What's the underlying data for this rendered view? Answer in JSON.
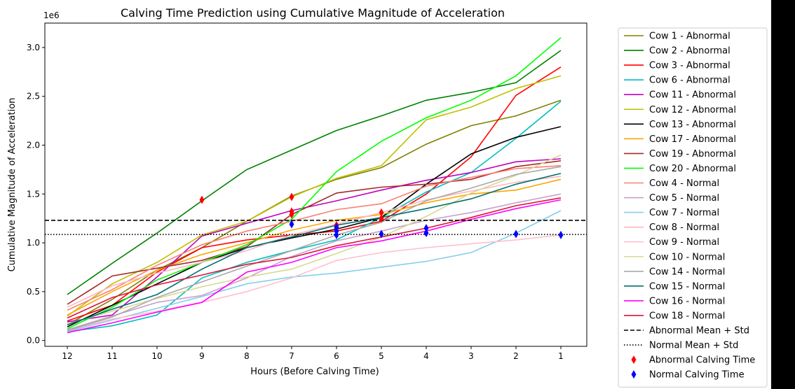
{
  "chart_data": {
    "type": "line",
    "title": "Calving Time Prediction using Cumulative Magnitude of Acceleration",
    "xlabel": "Hours (Before Calving Time)",
    "ylabel": "Cumulative Magnitude of Acceleration",
    "y_multiplier": "1e6",
    "x_categories": [
      "12",
      "11",
      "10",
      "9",
      "8",
      "7",
      "6",
      "5",
      "4",
      "3",
      "2",
      "1"
    ],
    "y_ticks": [
      "0.0",
      "0.5",
      "1.0",
      "1.5",
      "2.0",
      "2.5",
      "3.0"
    ],
    "ylim": [
      -0.06,
      3.25
    ],
    "grid": false,
    "legend_position": "outside-right",
    "series": [
      {
        "name": "Cow 1 - Abnormal",
        "color": "#808000",
        "values": [
          0.16,
          0.42,
          0.72,
          0.95,
          1.22,
          1.48,
          1.65,
          1.77,
          2.01,
          2.2,
          2.3,
          2.46
        ]
      },
      {
        "name": "Cow 2 - Abnormal",
        "color": "#008000",
        "values": [
          0.47,
          0.79,
          1.1,
          1.43,
          1.75,
          1.95,
          2.15,
          2.3,
          2.46,
          2.54,
          2.64,
          2.97
        ]
      },
      {
        "name": "Cow 3 - Abnormal",
        "color": "#ff0000",
        "values": [
          0.2,
          0.36,
          0.7,
          0.95,
          1.03,
          1.08,
          1.12,
          1.22,
          1.5,
          1.88,
          2.51,
          2.8
        ]
      },
      {
        "name": "Cow 6 - Abnormal",
        "color": "#00bfbf",
        "values": [
          0.09,
          0.15,
          0.26,
          0.64,
          0.8,
          0.92,
          1.03,
          1.26,
          1.52,
          1.72,
          2.07,
          2.45
        ]
      },
      {
        "name": "Cow 11 - Abnormal",
        "color": "#bf00bf",
        "values": [
          0.19,
          0.26,
          0.65,
          1.07,
          1.2,
          1.33,
          1.43,
          1.54,
          1.64,
          1.72,
          1.83,
          1.86
        ]
      },
      {
        "name": "Cow 12 - Abnormal",
        "color": "#bfbf00",
        "values": [
          0.25,
          0.58,
          0.8,
          1.08,
          1.22,
          1.47,
          1.66,
          1.79,
          2.26,
          2.39,
          2.58,
          2.71
        ]
      },
      {
        "name": "Cow 13 - Abnormal",
        "color": "#000000",
        "values": [
          0.14,
          0.36,
          0.58,
          0.8,
          0.95,
          1.05,
          1.14,
          1.26,
          1.6,
          1.91,
          2.08,
          2.19
        ]
      },
      {
        "name": "Cow 17 - Abnormal",
        "color": "#ffa500",
        "values": [
          0.26,
          0.5,
          0.72,
          0.88,
          1.0,
          1.13,
          1.23,
          1.29,
          1.41,
          1.5,
          1.54,
          1.65
        ]
      },
      {
        "name": "Cow 19 - Abnormal",
        "color": "#a52a2a",
        "values": [
          0.37,
          0.66,
          0.74,
          0.82,
          0.96,
          1.29,
          1.51,
          1.57,
          1.6,
          1.65,
          1.78,
          1.84
        ]
      },
      {
        "name": "Cow 20 - Abnormal",
        "color": "#00ff00",
        "values": [
          0.12,
          0.34,
          0.62,
          0.8,
          0.98,
          1.24,
          1.73,
          2.04,
          2.28,
          2.46,
          2.71,
          3.1
        ]
      },
      {
        "name": "Cow 4 - Normal",
        "color": "#fa8072",
        "values": [
          0.31,
          0.52,
          0.77,
          0.98,
          1.12,
          1.22,
          1.34,
          1.4,
          1.58,
          1.67,
          1.76,
          1.79
        ]
      },
      {
        "name": "Cow 5 - Normal",
        "color": "#c8a2c8",
        "values": [
          0.11,
          0.25,
          0.39,
          0.46,
          0.64,
          0.86,
          1.02,
          1.12,
          1.23,
          1.31,
          1.41,
          1.5
        ]
      },
      {
        "name": "Cow 7 - Normal",
        "color": "#87ceeb",
        "values": [
          0.09,
          0.21,
          0.33,
          0.45,
          0.58,
          0.65,
          0.69,
          0.75,
          0.81,
          0.9,
          1.1,
          1.33
        ]
      },
      {
        "name": "Cow 8 - Normal",
        "color": "#ffb6c1",
        "values": [
          0.34,
          0.56,
          0.69,
          0.8,
          0.92,
          1.08,
          1.19,
          1.31,
          1.44,
          1.53,
          1.62,
          1.68
        ]
      },
      {
        "name": "Cow 9 - Normal",
        "color": "#ffc0cb",
        "values": [
          0.1,
          0.22,
          0.3,
          0.39,
          0.5,
          0.64,
          0.82,
          0.9,
          0.95,
          0.99,
          1.03,
          1.08
        ]
      },
      {
        "name": "Cow 10 - Normal",
        "color": "#d8d890",
        "values": [
          0.17,
          0.3,
          0.43,
          0.55,
          0.65,
          0.73,
          0.89,
          1.06,
          1.27,
          1.51,
          1.69,
          1.9
        ]
      },
      {
        "name": "Cow 14 - Normal",
        "color": "#a9a9a9",
        "values": [
          0.1,
          0.24,
          0.44,
          0.6,
          0.76,
          0.92,
          1.08,
          1.21,
          1.43,
          1.56,
          1.7,
          1.78
        ]
      },
      {
        "name": "Cow 15 - Normal",
        "color": "#007070",
        "values": [
          0.16,
          0.32,
          0.47,
          0.73,
          0.95,
          1.06,
          1.18,
          1.26,
          1.35,
          1.45,
          1.6,
          1.71
        ]
      },
      {
        "name": "Cow 16 - Normal",
        "color": "#ff00ff",
        "values": [
          0.08,
          0.18,
          0.29,
          0.39,
          0.7,
          0.8,
          0.95,
          1.02,
          1.12,
          1.24,
          1.35,
          1.44
        ]
      },
      {
        "name": "Cow 18 - Normal",
        "color": "#dc143c",
        "values": [
          0.23,
          0.44,
          0.57,
          0.67,
          0.78,
          0.85,
          0.97,
          1.06,
          1.15,
          1.26,
          1.38,
          1.46
        ]
      }
    ],
    "reference_lines": [
      {
        "name": "Abnormal Mean + Std",
        "value": 1.23,
        "style": "dashed",
        "color": "#000000"
      },
      {
        "name": "Normal Mean + Std",
        "value": 1.085,
        "style": "dotted",
        "color": "#000000"
      }
    ],
    "markers": [
      {
        "name": "Abnormal Calving Time",
        "color": "#ff0000",
        "points": [
          {
            "x": "9",
            "y": 1.44
          },
          {
            "x": "7",
            "y": 1.47
          },
          {
            "x": "7",
            "y": 1.32
          },
          {
            "x": "7",
            "y": 1.29
          },
          {
            "x": "6",
            "y": 1.18
          },
          {
            "x": "6",
            "y": 1.15
          },
          {
            "x": "5",
            "y": 1.31
          },
          {
            "x": "5",
            "y": 1.25
          }
        ]
      },
      {
        "name": "Normal Calving Time",
        "color": "#0000ff",
        "points": [
          {
            "x": "7",
            "y": 1.19
          },
          {
            "x": "6",
            "y": 1.16
          },
          {
            "x": "6",
            "y": 1.12
          },
          {
            "x": "6",
            "y": 1.08
          },
          {
            "x": "5",
            "y": 1.09
          },
          {
            "x": "4",
            "y": 1.15
          },
          {
            "x": "4",
            "y": 1.1
          },
          {
            "x": "2",
            "y": 1.09
          },
          {
            "x": "1",
            "y": 1.08
          }
        ]
      }
    ]
  }
}
